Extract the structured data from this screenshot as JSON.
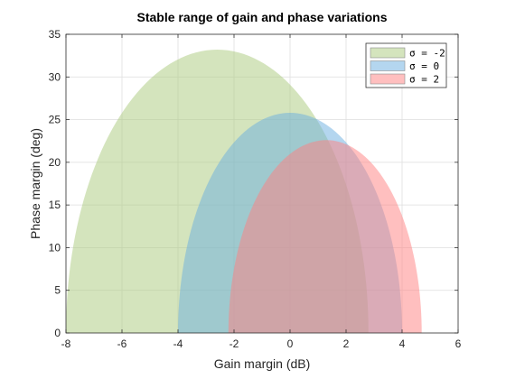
{
  "chart_data": {
    "type": "area",
    "title": "Stable range of gain and phase variations",
    "xlabel": "Gain margin (dB)",
    "ylabel": "Phase margin (deg)",
    "xlim": [
      -8,
      6
    ],
    "ylim": [
      0,
      35
    ],
    "xticks": [
      "-8",
      "-6",
      "-4",
      "-2",
      "0",
      "2",
      "4",
      "6"
    ],
    "yticks": [
      "0",
      "5",
      "10",
      "15",
      "20",
      "25",
      "30",
      "35"
    ],
    "grid": true,
    "legend_position": "top-right",
    "series": [
      {
        "name": "σ = -2",
        "legend_label": "σ  =  -2",
        "color": "#a9c97b",
        "opacity": 0.5,
        "gain_range": [
          -8.0,
          2.8
        ],
        "peak_gain": -2.6,
        "peak_phase": 33.2
      },
      {
        "name": "σ = 0",
        "legend_label": "σ  =  0",
        "color": "#6aaee0",
        "opacity": 0.5,
        "gain_range": [
          -4.0,
          4.0
        ],
        "peak_gain": 0.0,
        "peak_phase": 25.8
      },
      {
        "name": "σ = 2",
        "legend_label": "σ  =  2",
        "color": "#ff8080",
        "opacity": 0.5,
        "gain_range": [
          -2.2,
          4.7
        ],
        "peak_gain": 1.3,
        "peak_phase": 22.6
      }
    ]
  }
}
